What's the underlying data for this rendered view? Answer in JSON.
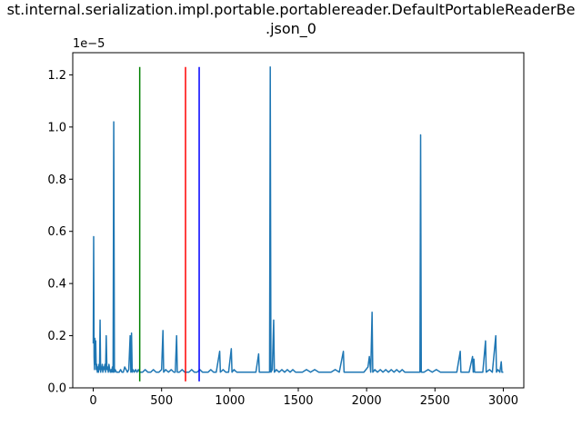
{
  "chart_data": {
    "type": "line",
    "title_line1": "st.internal.serialization.impl.portable.portablereader.DefaultPortableReaderBe",
    "title_line2": ".json_0",
    "y_multiplier_label": "1e−5",
    "xlim": [
      -150,
      3150
    ],
    "ylim": [
      0,
      1.285
    ],
    "x_ticks": [
      0,
      500,
      1000,
      1500,
      2000,
      2500,
      3000
    ],
    "x_tick_labels": [
      "0",
      "500",
      "1000",
      "1500",
      "2000",
      "2500",
      "3000"
    ],
    "y_ticks": [
      0.0,
      0.2,
      0.4,
      0.6,
      0.8,
      1.0,
      1.2
    ],
    "y_tick_labels": [
      "0.0",
      "0.2",
      "0.4",
      "0.6",
      "0.8",
      "1.0",
      "1.2"
    ],
    "vertical_lines": [
      {
        "x": 340,
        "color": "#008000"
      },
      {
        "x": 675,
        "color": "#ff0000"
      },
      {
        "x": 775,
        "color": "#0000ff"
      }
    ],
    "vline_top": 1.23,
    "series": [
      {
        "color": "#1f77b4",
        "baseline": 0.06,
        "points": [
          [
            0,
            0.17
          ],
          [
            3,
            0.58
          ],
          [
            6,
            0.12
          ],
          [
            9,
            0.07
          ],
          [
            12,
            0.19
          ],
          [
            15,
            0.09
          ],
          [
            18,
            0.18
          ],
          [
            22,
            0.07
          ],
          [
            26,
            0.09
          ],
          [
            30,
            0.06
          ],
          [
            34,
            0.08
          ],
          [
            38,
            0.06
          ],
          [
            42,
            0.09
          ],
          [
            46,
            0.07
          ],
          [
            50,
            0.26
          ],
          [
            54,
            0.06
          ],
          [
            58,
            0.08
          ],
          [
            62,
            0.07
          ],
          [
            66,
            0.09
          ],
          [
            70,
            0.06
          ],
          [
            75,
            0.08
          ],
          [
            80,
            0.07
          ],
          [
            85,
            0.09
          ],
          [
            90,
            0.06
          ],
          [
            95,
            0.2
          ],
          [
            100,
            0.07
          ],
          [
            105,
            0.08
          ],
          [
            110,
            0.06
          ],
          [
            115,
            0.09
          ],
          [
            120,
            0.07
          ],
          [
            125,
            0.06
          ],
          [
            130,
            0.07
          ],
          [
            135,
            0.06
          ],
          [
            140,
            0.08
          ],
          [
            145,
            0.06
          ],
          [
            150,
            1.02
          ],
          [
            155,
            0.06
          ],
          [
            160,
            0.07
          ],
          [
            170,
            0.06
          ],
          [
            180,
            0.06
          ],
          [
            190,
            0.06
          ],
          [
            200,
            0.07
          ],
          [
            210,
            0.06
          ],
          [
            220,
            0.06
          ],
          [
            230,
            0.08
          ],
          [
            240,
            0.07
          ],
          [
            250,
            0.06
          ],
          [
            260,
            0.07
          ],
          [
            270,
            0.2
          ],
          [
            275,
            0.06
          ],
          [
            280,
            0.21
          ],
          [
            285,
            0.06
          ],
          [
            290,
            0.07
          ],
          [
            300,
            0.06
          ],
          [
            310,
            0.07
          ],
          [
            320,
            0.06
          ],
          [
            330,
            0.07
          ],
          [
            340,
            0.06
          ],
          [
            360,
            0.06
          ],
          [
            380,
            0.07
          ],
          [
            400,
            0.06
          ],
          [
            420,
            0.06
          ],
          [
            440,
            0.07
          ],
          [
            460,
            0.06
          ],
          [
            480,
            0.06
          ],
          [
            500,
            0.07
          ],
          [
            510,
            0.22
          ],
          [
            515,
            0.06
          ],
          [
            530,
            0.07
          ],
          [
            550,
            0.06
          ],
          [
            570,
            0.07
          ],
          [
            590,
            0.06
          ],
          [
            600,
            0.06
          ],
          [
            610,
            0.2
          ],
          [
            615,
            0.06
          ],
          [
            630,
            0.06
          ],
          [
            650,
            0.07
          ],
          [
            670,
            0.06
          ],
          [
            700,
            0.06
          ],
          [
            720,
            0.07
          ],
          [
            740,
            0.06
          ],
          [
            760,
            0.06
          ],
          [
            780,
            0.07
          ],
          [
            800,
            0.06
          ],
          [
            820,
            0.06
          ],
          [
            840,
            0.06
          ],
          [
            860,
            0.07
          ],
          [
            880,
            0.06
          ],
          [
            900,
            0.06
          ],
          [
            925,
            0.14
          ],
          [
            930,
            0.06
          ],
          [
            950,
            0.07
          ],
          [
            970,
            0.06
          ],
          [
            990,
            0.06
          ],
          [
            1010,
            0.15
          ],
          [
            1015,
            0.06
          ],
          [
            1030,
            0.07
          ],
          [
            1050,
            0.06
          ],
          [
            1080,
            0.06
          ],
          [
            1100,
            0.06
          ],
          [
            1130,
            0.06
          ],
          [
            1160,
            0.06
          ],
          [
            1190,
            0.06
          ],
          [
            1210,
            0.13
          ],
          [
            1215,
            0.06
          ],
          [
            1240,
            0.06
          ],
          [
            1270,
            0.06
          ],
          [
            1290,
            0.06
          ],
          [
            1295,
            1.23
          ],
          [
            1300,
            0.06
          ],
          [
            1310,
            0.07
          ],
          [
            1320,
            0.26
          ],
          [
            1325,
            0.06
          ],
          [
            1340,
            0.07
          ],
          [
            1360,
            0.06
          ],
          [
            1380,
            0.07
          ],
          [
            1400,
            0.06
          ],
          [
            1420,
            0.07
          ],
          [
            1440,
            0.06
          ],
          [
            1460,
            0.07
          ],
          [
            1480,
            0.06
          ],
          [
            1500,
            0.06
          ],
          [
            1530,
            0.06
          ],
          [
            1560,
            0.07
          ],
          [
            1590,
            0.06
          ],
          [
            1620,
            0.07
          ],
          [
            1650,
            0.06
          ],
          [
            1680,
            0.06
          ],
          [
            1710,
            0.06
          ],
          [
            1740,
            0.06
          ],
          [
            1770,
            0.07
          ],
          [
            1800,
            0.06
          ],
          [
            1830,
            0.14
          ],
          [
            1835,
            0.06
          ],
          [
            1860,
            0.06
          ],
          [
            1890,
            0.06
          ],
          [
            1920,
            0.06
          ],
          [
            1950,
            0.06
          ],
          [
            1980,
            0.06
          ],
          [
            2010,
            0.08
          ],
          [
            2020,
            0.12
          ],
          [
            2030,
            0.06
          ],
          [
            2040,
            0.29
          ],
          [
            2045,
            0.06
          ],
          [
            2060,
            0.07
          ],
          [
            2080,
            0.06
          ],
          [
            2100,
            0.07
          ],
          [
            2120,
            0.06
          ],
          [
            2140,
            0.07
          ],
          [
            2160,
            0.06
          ],
          [
            2180,
            0.07
          ],
          [
            2200,
            0.06
          ],
          [
            2220,
            0.07
          ],
          [
            2240,
            0.06
          ],
          [
            2260,
            0.07
          ],
          [
            2280,
            0.06
          ],
          [
            2300,
            0.06
          ],
          [
            2330,
            0.06
          ],
          [
            2360,
            0.06
          ],
          [
            2390,
            0.06
          ],
          [
            2395,
            0.97
          ],
          [
            2400,
            0.06
          ],
          [
            2420,
            0.06
          ],
          [
            2450,
            0.07
          ],
          [
            2480,
            0.06
          ],
          [
            2510,
            0.07
          ],
          [
            2540,
            0.06
          ],
          [
            2570,
            0.06
          ],
          [
            2600,
            0.06
          ],
          [
            2630,
            0.06
          ],
          [
            2660,
            0.06
          ],
          [
            2685,
            0.14
          ],
          [
            2690,
            0.06
          ],
          [
            2720,
            0.06
          ],
          [
            2750,
            0.06
          ],
          [
            2775,
            0.12
          ],
          [
            2780,
            0.06
          ],
          [
            2785,
            0.11
          ],
          [
            2790,
            0.06
          ],
          [
            2820,
            0.06
          ],
          [
            2850,
            0.06
          ],
          [
            2870,
            0.18
          ],
          [
            2875,
            0.06
          ],
          [
            2900,
            0.07
          ],
          [
            2920,
            0.06
          ],
          [
            2945,
            0.2
          ],
          [
            2950,
            0.06
          ],
          [
            2960,
            0.07
          ],
          [
            2975,
            0.06
          ],
          [
            2985,
            0.1
          ],
          [
            2990,
            0.06
          ],
          [
            3000,
            0.06
          ]
        ]
      }
    ]
  }
}
